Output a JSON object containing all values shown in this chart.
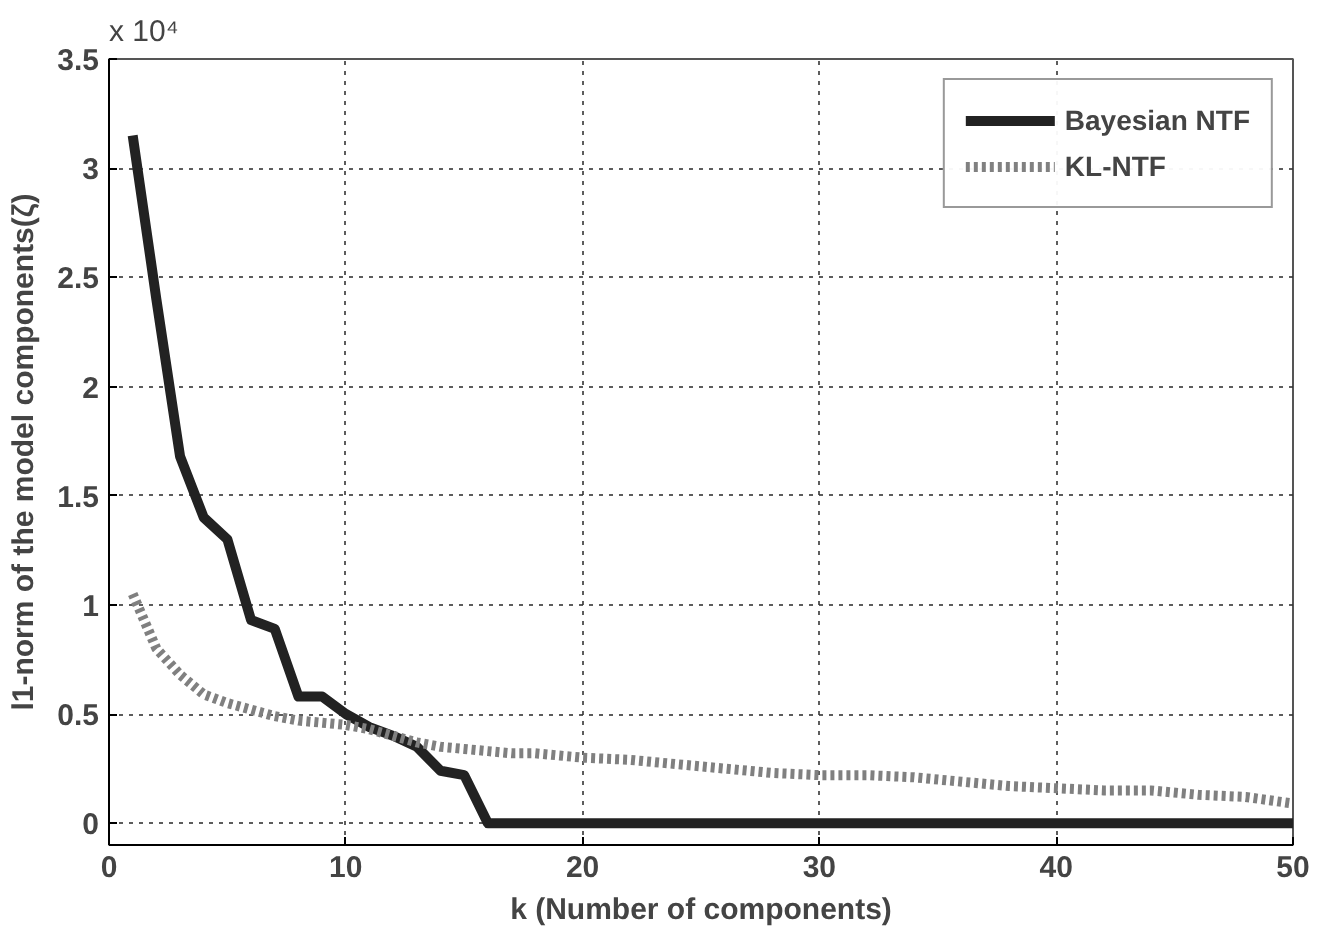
{
  "chart_data": {
    "type": "line",
    "xlabel": "k (Number of components)",
    "ylabel": "l1-norm of the model components(ζ)",
    "annotations": [
      "x 10⁴"
    ],
    "xlim": [
      0,
      50
    ],
    "xticks": [
      0,
      10,
      20,
      30,
      40,
      50
    ],
    "ylim": [
      -0.1,
      3.5
    ],
    "yticks": [
      0,
      0.5,
      1,
      1.5,
      2,
      2.5,
      3,
      3.5
    ],
    "grid": true,
    "legend": "top right",
    "series": [
      {
        "name": "Bayesian NTF",
        "color": "#222222",
        "line_style": "solid",
        "x": [
          1,
          2,
          3,
          4,
          5,
          6,
          7,
          8,
          9,
          10,
          11,
          12,
          13,
          14,
          15,
          16,
          50
        ],
        "values": [
          3.15,
          2.4,
          1.68,
          1.4,
          1.3,
          0.93,
          0.89,
          0.58,
          0.58,
          0.5,
          0.44,
          0.4,
          0.35,
          0.24,
          0.22,
          0,
          0
        ]
      },
      {
        "name": "KL-NTF",
        "color": "#808080",
        "line_style": "dotted",
        "x": [
          1,
          2,
          3,
          4,
          5,
          6,
          7,
          8,
          9,
          10,
          11,
          12,
          13,
          14,
          15,
          16,
          17,
          18,
          20,
          22,
          24,
          26,
          28,
          30,
          32,
          34,
          36,
          38,
          40,
          42,
          44,
          46,
          48,
          50
        ],
        "values": [
          1.05,
          0.8,
          0.68,
          0.59,
          0.55,
          0.52,
          0.49,
          0.47,
          0.46,
          0.45,
          0.43,
          0.4,
          0.37,
          0.35,
          0.34,
          0.33,
          0.32,
          0.32,
          0.3,
          0.29,
          0.27,
          0.25,
          0.23,
          0.22,
          0.22,
          0.21,
          0.19,
          0.17,
          0.16,
          0.15,
          0.15,
          0.13,
          0.12,
          0.09
        ]
      }
    ]
  }
}
